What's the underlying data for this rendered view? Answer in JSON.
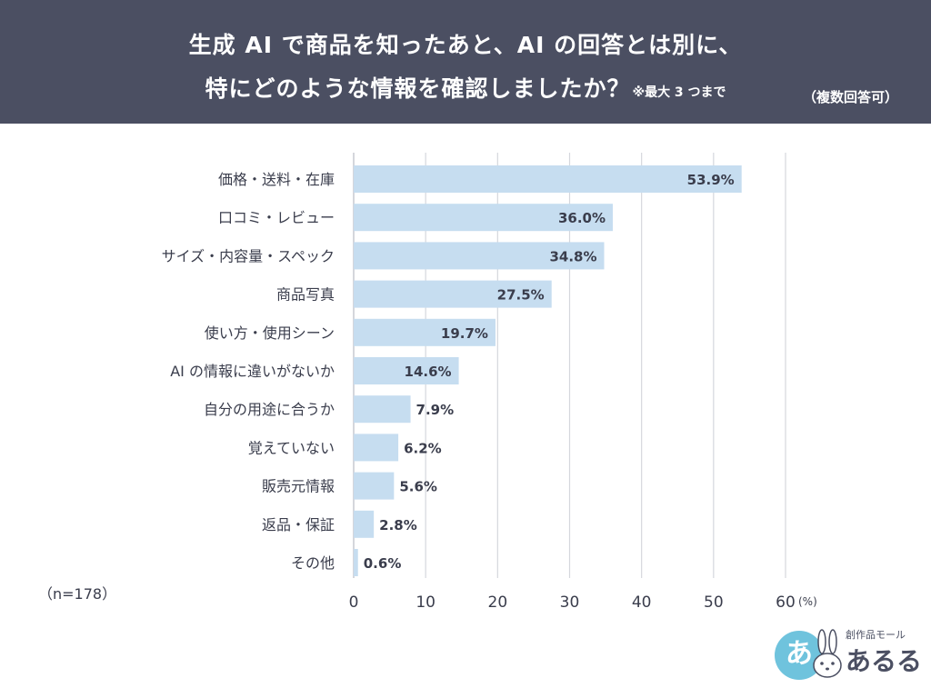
{
  "header": {
    "title_line1": "生成 AI で商品を知ったあと、AI の回答とは別に、",
    "title_line2": "特にどのような情報を確認しましたか？",
    "note": "※最大 3 つまで",
    "multi_answer": "（複数回答可）"
  },
  "sample_size": "（n=178）",
  "logo": {
    "circle_text": "あ",
    "small_text": "創作品モール",
    "big_text": "あるる"
  },
  "colors": {
    "header_bg": "#4b4f62",
    "bar": "#c6ddf0",
    "grid": "#d5d7dd",
    "text": "#3a3d4c"
  },
  "chart_data": {
    "type": "bar",
    "orientation": "horizontal",
    "categories": [
      "価格・送料・在庫",
      "口コミ・レビュー",
      "サイズ・内容量・スペック",
      "商品写真",
      "使い方・使用シーン",
      "AI の情報に違いがないか",
      "自分の用途に合うか",
      "覚えていない",
      "販売元情報",
      "返品・保証",
      "その他"
    ],
    "values": [
      53.9,
      36.0,
      34.8,
      27.5,
      19.7,
      14.6,
      7.9,
      6.2,
      5.6,
      2.8,
      0.6
    ],
    "value_labels": [
      "53.9%",
      "36.0%",
      "34.8%",
      "27.5%",
      "19.7%",
      "14.6%",
      "7.9%",
      "6.2%",
      "5.6%",
      "2.8%",
      "0.6%"
    ],
    "xlim": [
      0,
      60
    ],
    "xticks": [
      0,
      10,
      20,
      30,
      40,
      50,
      60
    ],
    "xtick_labels": [
      "0",
      "10",
      "20",
      "30",
      "40",
      "50",
      "60"
    ],
    "unit_label": "(%)",
    "grid": true
  }
}
